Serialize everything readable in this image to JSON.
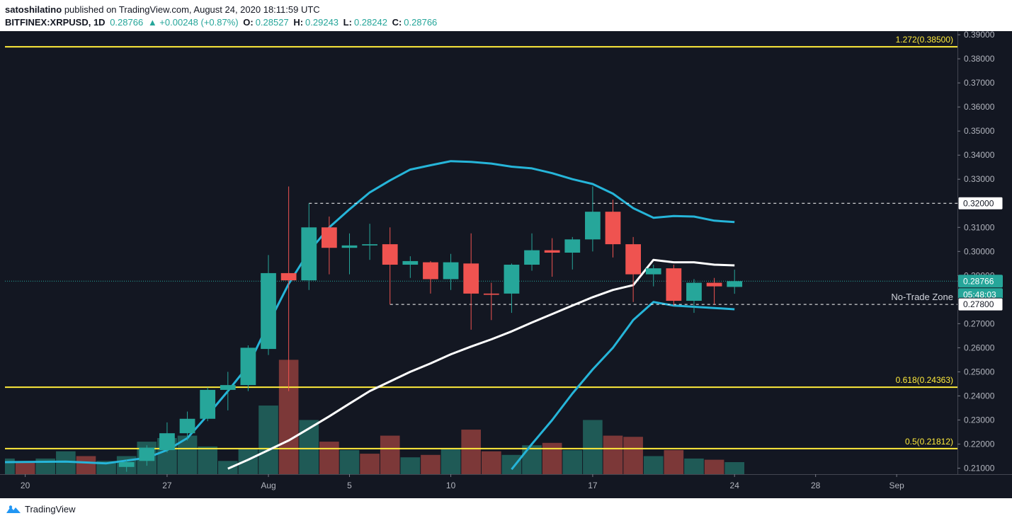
{
  "header": {
    "publisher": "satoshilatino",
    "published_text": "published on TradingView.com, August 24, 2020 18:11:59 UTC",
    "symbol": "BITFINEX:XRPUSD, 1D",
    "last": "0.28766",
    "change": "▲ +0.00248 (+0.87%)",
    "o_label": "O:",
    "o_value": "0.28527",
    "h_label": "H:",
    "h_value": "0.29243",
    "l_label": "L:",
    "l_value": "0.28242",
    "c_label": "C:",
    "c_value": "0.28766"
  },
  "footer": {
    "brand": "TradingView"
  },
  "colors": {
    "background": "#131722",
    "up": "#26a69a",
    "down": "#ef5350",
    "fib": "#ffeb3b",
    "bb_outer": "#26b5d9",
    "bb_mid": "#ffffff"
  },
  "chart_data": {
    "type": "candlestick",
    "y_axis": {
      "range": [
        0.2075,
        0.3915
      ],
      "ticks": [
        "0.39000",
        "0.38000",
        "0.37000",
        "0.36000",
        "0.35000",
        "0.34000",
        "0.33000",
        "0.32000",
        "0.31000",
        "0.30000",
        "0.29000",
        "0.28000",
        "0.27000",
        "0.26000",
        "0.25000",
        "0.24000",
        "0.23000",
        "0.22000",
        "0.21000"
      ]
    },
    "x_axis": {
      "range": [
        "2020-07-19",
        "2020-09-04"
      ],
      "ticks": [
        {
          "date": "2020-07-20",
          "label": "20"
        },
        {
          "date": "2020-07-27",
          "label": "27"
        },
        {
          "date": "2020-08-01",
          "label": "Aug"
        },
        {
          "date": "2020-08-05",
          "label": "5"
        },
        {
          "date": "2020-08-10",
          "label": "10"
        },
        {
          "date": "2020-08-17",
          "label": "17"
        },
        {
          "date": "2020-08-24",
          "label": "24"
        },
        {
          "date": "2020-08-28",
          "label": "28"
        },
        {
          "date": "2020-09-01",
          "label": "Sep"
        }
      ]
    },
    "candles": [
      {
        "date": "2020-07-25",
        "o": 0.2105,
        "h": 0.2135,
        "l": 0.2085,
        "c": 0.2125
      },
      {
        "date": "2020-07-26",
        "o": 0.213,
        "h": 0.2195,
        "l": 0.211,
        "c": 0.2185
      },
      {
        "date": "2020-07-27",
        "o": 0.2175,
        "h": 0.229,
        "l": 0.2165,
        "c": 0.2245
      },
      {
        "date": "2020-07-28",
        "o": 0.2245,
        "h": 0.2335,
        "l": 0.2215,
        "c": 0.2305
      },
      {
        "date": "2020-07-29",
        "o": 0.2305,
        "h": 0.2435,
        "l": 0.2295,
        "c": 0.2425
      },
      {
        "date": "2020-07-30",
        "o": 0.2425,
        "h": 0.25,
        "l": 0.234,
        "c": 0.2445
      },
      {
        "date": "2020-07-31",
        "o": 0.2445,
        "h": 0.261,
        "l": 0.242,
        "c": 0.26
      },
      {
        "date": "2020-08-01",
        "o": 0.2595,
        "h": 0.2985,
        "l": 0.257,
        "c": 0.291
      },
      {
        "date": "2020-08-02",
        "o": 0.291,
        "h": 0.327,
        "l": 0.242,
        "c": 0.288
      },
      {
        "date": "2020-08-03",
        "o": 0.288,
        "h": 0.32,
        "l": 0.284,
        "c": 0.31
      },
      {
        "date": "2020-08-04",
        "o": 0.31,
        "h": 0.3145,
        "l": 0.2905,
        "c": 0.3015
      },
      {
        "date": "2020-08-05",
        "o": 0.3015,
        "h": 0.3075,
        "l": 0.2905,
        "c": 0.3025
      },
      {
        "date": "2020-08-06",
        "o": 0.3025,
        "h": 0.3115,
        "l": 0.2965,
        "c": 0.303
      },
      {
        "date": "2020-08-07",
        "o": 0.303,
        "h": 0.31,
        "l": 0.278,
        "c": 0.2945
      },
      {
        "date": "2020-08-08",
        "o": 0.2945,
        "h": 0.298,
        "l": 0.289,
        "c": 0.296
      },
      {
        "date": "2020-08-09",
        "o": 0.2955,
        "h": 0.296,
        "l": 0.2825,
        "c": 0.2885
      },
      {
        "date": "2020-08-10",
        "o": 0.2885,
        "h": 0.299,
        "l": 0.284,
        "c": 0.2955
      },
      {
        "date": "2020-08-11",
        "o": 0.295,
        "h": 0.3075,
        "l": 0.2675,
        "c": 0.2825
      },
      {
        "date": "2020-08-12",
        "o": 0.2825,
        "h": 0.287,
        "l": 0.2715,
        "c": 0.282
      },
      {
        "date": "2020-08-13",
        "o": 0.2825,
        "h": 0.295,
        "l": 0.2745,
        "c": 0.2945
      },
      {
        "date": "2020-08-14",
        "o": 0.2945,
        "h": 0.3075,
        "l": 0.292,
        "c": 0.3005
      },
      {
        "date": "2020-08-15",
        "o": 0.3005,
        "h": 0.3055,
        "l": 0.2895,
        "c": 0.2995
      },
      {
        "date": "2020-08-16",
        "o": 0.2995,
        "h": 0.306,
        "l": 0.2925,
        "c": 0.305
      },
      {
        "date": "2020-08-17",
        "o": 0.305,
        "h": 0.327,
        "l": 0.3,
        "c": 0.3165
      },
      {
        "date": "2020-08-18",
        "o": 0.3165,
        "h": 0.3215,
        "l": 0.2975,
        "c": 0.303
      },
      {
        "date": "2020-08-19",
        "o": 0.303,
        "h": 0.306,
        "l": 0.279,
        "c": 0.2905
      },
      {
        "date": "2020-08-20",
        "o": 0.2905,
        "h": 0.2945,
        "l": 0.2855,
        "c": 0.293
      },
      {
        "date": "2020-08-21",
        "o": 0.293,
        "h": 0.2945,
        "l": 0.2775,
        "c": 0.2795
      },
      {
        "date": "2020-08-22",
        "o": 0.2795,
        "h": 0.2885,
        "l": 0.2745,
        "c": 0.287
      },
      {
        "date": "2020-08-23",
        "o": 0.287,
        "h": 0.289,
        "l": 0.278,
        "c": 0.2855
      },
      {
        "date": "2020-08-24",
        "o": 0.28527,
        "h": 0.29243,
        "l": 0.28242,
        "c": 0.28766
      }
    ],
    "volume": {
      "dates": [
        "2020-07-19",
        "2020-07-20",
        "2020-07-21",
        "2020-07-22",
        "2020-07-23",
        "2020-07-24",
        "2020-07-25",
        "2020-07-26",
        "2020-07-27",
        "2020-07-28",
        "2020-07-29",
        "2020-07-30",
        "2020-07-31",
        "2020-08-01",
        "2020-08-02",
        "2020-08-03",
        "2020-08-04",
        "2020-08-05",
        "2020-08-06",
        "2020-08-07",
        "2020-08-08",
        "2020-08-09",
        "2020-08-10",
        "2020-08-11",
        "2020-08-12",
        "2020-08-13",
        "2020-08-14",
        "2020-08-15",
        "2020-08-16",
        "2020-08-17",
        "2020-08-18",
        "2020-08-19",
        "2020-08-20",
        "2020-08-21",
        "2020-08-22",
        "2020-08-23",
        "2020-08-24"
      ],
      "values": [
        0.214,
        0.2125,
        0.214,
        0.217,
        0.215,
        0.213,
        0.215,
        0.221,
        0.2225,
        0.2235,
        0.219,
        0.213,
        0.218,
        0.236,
        0.255,
        0.23,
        0.221,
        0.2175,
        0.216,
        0.2235,
        0.2145,
        0.2155,
        0.218,
        0.226,
        0.217,
        0.2155,
        0.2195,
        0.2205,
        0.2175,
        0.23,
        0.2235,
        0.223,
        0.215,
        0.2175,
        0.214,
        0.2135,
        0.2125
      ],
      "up": [
        true,
        false,
        true,
        true,
        false,
        true,
        true,
        true,
        true,
        true,
        true,
        true,
        true,
        true,
        false,
        true,
        false,
        true,
        false,
        false,
        true,
        false,
        true,
        false,
        false,
        true,
        true,
        false,
        true,
        true,
        false,
        false,
        true,
        false,
        true,
        false,
        true
      ]
    },
    "bollinger": {
      "upper": [
        {
          "date": "2020-07-19",
          "v": 0.2125
        },
        {
          "date": "2020-07-22",
          "v": 0.2127
        },
        {
          "date": "2020-07-24",
          "v": 0.212
        },
        {
          "date": "2020-07-26",
          "v": 0.2143
        },
        {
          "date": "2020-07-27",
          "v": 0.2175
        },
        {
          "date": "2020-07-28",
          "v": 0.2225
        },
        {
          "date": "2020-07-29",
          "v": 0.232
        },
        {
          "date": "2020-07-30",
          "v": 0.242
        },
        {
          "date": "2020-07-31",
          "v": 0.2525
        },
        {
          "date": "2020-08-01",
          "v": 0.27
        },
        {
          "date": "2020-08-02",
          "v": 0.2865
        },
        {
          "date": "2020-08-03",
          "v": 0.3
        },
        {
          "date": "2020-08-04",
          "v": 0.31
        },
        {
          "date": "2020-08-05",
          "v": 0.3175
        },
        {
          "date": "2020-08-06",
          "v": 0.3245
        },
        {
          "date": "2020-08-07",
          "v": 0.3295
        },
        {
          "date": "2020-08-08",
          "v": 0.334
        },
        {
          "date": "2020-08-09",
          "v": 0.3358
        },
        {
          "date": "2020-08-10",
          "v": 0.3375
        },
        {
          "date": "2020-08-11",
          "v": 0.3372
        },
        {
          "date": "2020-08-12",
          "v": 0.3365
        },
        {
          "date": "2020-08-13",
          "v": 0.3352
        },
        {
          "date": "2020-08-14",
          "v": 0.3345
        },
        {
          "date": "2020-08-15",
          "v": 0.3325
        },
        {
          "date": "2020-08-16",
          "v": 0.33
        },
        {
          "date": "2020-08-17",
          "v": 0.328
        },
        {
          "date": "2020-08-18",
          "v": 0.324
        },
        {
          "date": "2020-08-19",
          "v": 0.318
        },
        {
          "date": "2020-08-20",
          "v": 0.314
        },
        {
          "date": "2020-08-21",
          "v": 0.3147
        },
        {
          "date": "2020-08-22",
          "v": 0.3145
        },
        {
          "date": "2020-08-23",
          "v": 0.3128
        },
        {
          "date": "2020-08-24",
          "v": 0.3122
        }
      ],
      "middle": [
        {
          "date": "2020-07-30",
          "v": 0.2098
        },
        {
          "date": "2020-07-31",
          "v": 0.2135
        },
        {
          "date": "2020-08-01",
          "v": 0.2175
        },
        {
          "date": "2020-08-02",
          "v": 0.2215
        },
        {
          "date": "2020-08-03",
          "v": 0.2265
        },
        {
          "date": "2020-08-04",
          "v": 0.2315
        },
        {
          "date": "2020-08-05",
          "v": 0.2368
        },
        {
          "date": "2020-08-06",
          "v": 0.242
        },
        {
          "date": "2020-08-07",
          "v": 0.246
        },
        {
          "date": "2020-08-08",
          "v": 0.25
        },
        {
          "date": "2020-08-09",
          "v": 0.2535
        },
        {
          "date": "2020-08-10",
          "v": 0.2573
        },
        {
          "date": "2020-08-11",
          "v": 0.2605
        },
        {
          "date": "2020-08-12",
          "v": 0.2635
        },
        {
          "date": "2020-08-13",
          "v": 0.2668
        },
        {
          "date": "2020-08-14",
          "v": 0.2705
        },
        {
          "date": "2020-08-15",
          "v": 0.274
        },
        {
          "date": "2020-08-16",
          "v": 0.2775
        },
        {
          "date": "2020-08-17",
          "v": 0.281
        },
        {
          "date": "2020-08-18",
          "v": 0.284
        },
        {
          "date": "2020-08-19",
          "v": 0.286
        },
        {
          "date": "2020-08-20",
          "v": 0.2965
        },
        {
          "date": "2020-08-21",
          "v": 0.2955
        },
        {
          "date": "2020-08-22",
          "v": 0.2955
        },
        {
          "date": "2020-08-23",
          "v": 0.2945
        },
        {
          "date": "2020-08-24",
          "v": 0.2942
        }
      ],
      "lower": [
        {
          "date": "2020-08-13",
          "v": 0.2095
        },
        {
          "date": "2020-08-14",
          "v": 0.22
        },
        {
          "date": "2020-08-15",
          "v": 0.23
        },
        {
          "date": "2020-08-16",
          "v": 0.241
        },
        {
          "date": "2020-08-17",
          "v": 0.251
        },
        {
          "date": "2020-08-18",
          "v": 0.26
        },
        {
          "date": "2020-08-19",
          "v": 0.2715
        },
        {
          "date": "2020-08-20",
          "v": 0.279
        },
        {
          "date": "2020-08-21",
          "v": 0.2775
        },
        {
          "date": "2020-08-22",
          "v": 0.277
        },
        {
          "date": "2020-08-23",
          "v": 0.2765
        },
        {
          "date": "2020-08-24",
          "v": 0.276
        }
      ]
    },
    "horizontal_lines": [
      {
        "label": "1.272(0.38500)",
        "value": 0.385,
        "color": "#ffeb3b"
      },
      {
        "label": "0.618(0.24363)",
        "value": 0.24363,
        "color": "#ffeb3b"
      },
      {
        "label": "0.5(0.21812)",
        "value": 0.21812,
        "color": "#ffeb3b"
      }
    ],
    "zone": {
      "label": "No-Trade Zone",
      "top": 0.32,
      "bottom": 0.278,
      "top_start": "2020-08-03",
      "bottom_start": "2020-08-07"
    },
    "price_tags": [
      {
        "text": "0.32000",
        "value": 0.32,
        "style": "white"
      },
      {
        "text": "0.28766",
        "value": 0.28766,
        "style": "teal"
      },
      {
        "text": "05:48:03",
        "value": 0.28766,
        "style": "teal-timer"
      },
      {
        "text": "0.27800",
        "value": 0.278,
        "style": "white"
      }
    ],
    "last_price": 0.28766
  }
}
